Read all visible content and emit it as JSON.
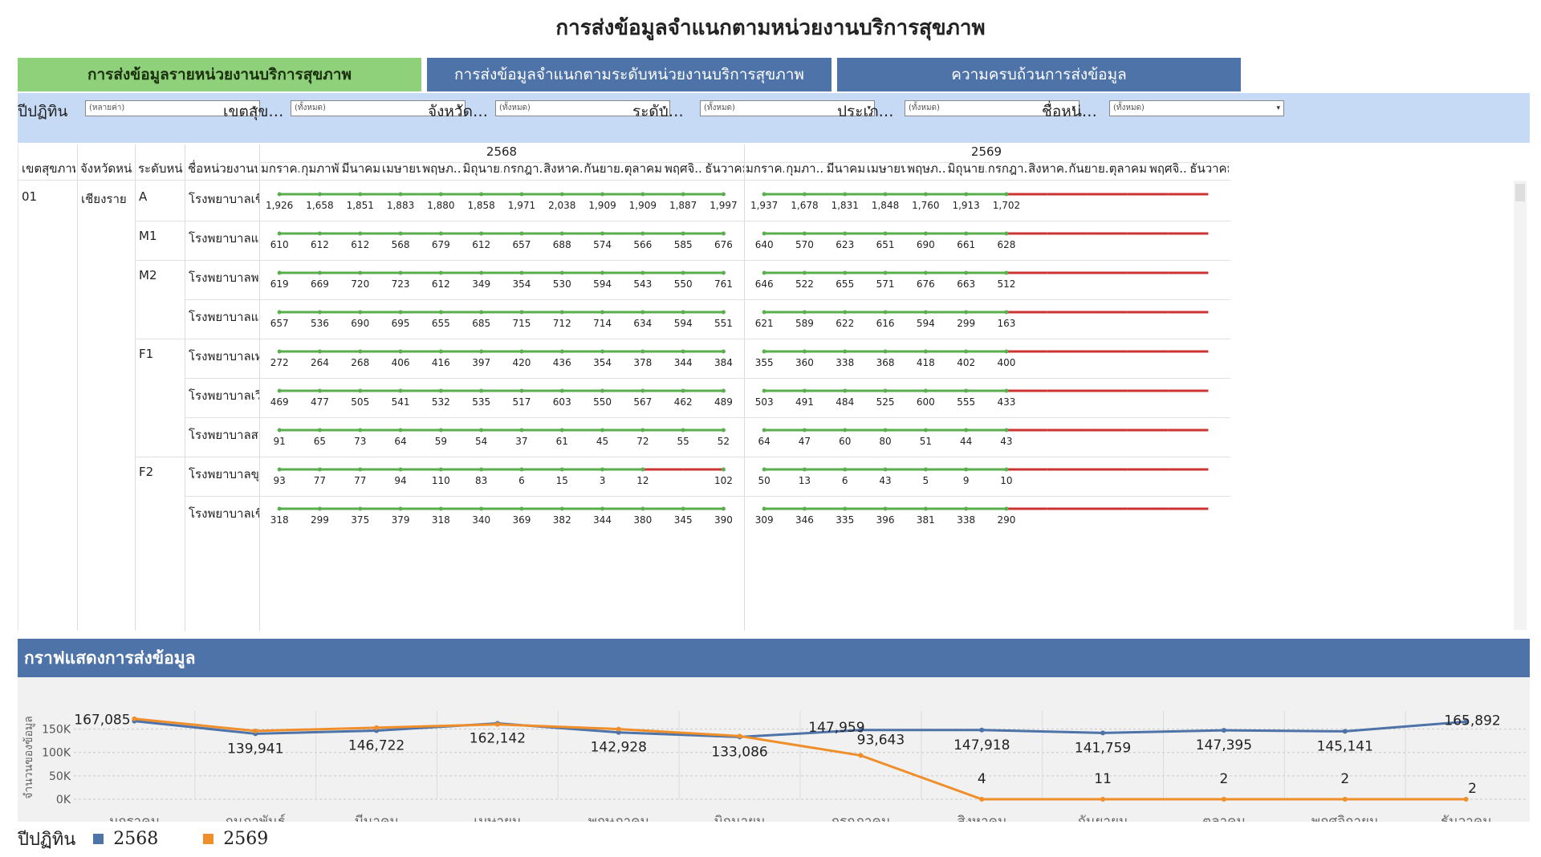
{
  "title": "การส่งข้อมูลจำแนกตามหน่วยงานบริการสุขภาพ",
  "tabs": [
    {
      "label": "การส่งข้อมูลรายหน่วยงานบริการสุขภาพ",
      "active": true
    },
    {
      "label": "การส่งข้อมูลจำแนกตามระดับหน่วยงานบริการสุขภาพ",
      "active": false
    },
    {
      "label": "ความครบถ้วนการส่งข้อมูล",
      "active": false
    }
  ],
  "filters": [
    {
      "label": "ปีปฏิทิน",
      "value": "(หลายค่า)"
    },
    {
      "label": "เขตสุข…",
      "value": "(ทั้งหมด)"
    },
    {
      "label": "จังหวัด…",
      "value": "(ทั้งหมด)"
    },
    {
      "label": "ระดับ…",
      "value": "(ทั้งหมด)"
    },
    {
      "label": "ประเภ…",
      "value": "(ทั้งหมด)"
    },
    {
      "label": "ชื่อหน่…",
      "value": "(ทั้งหมด)"
    }
  ],
  "table": {
    "row_headers": [
      "เขตสุขภาพ",
      "จังหวัดหน่..",
      "ระดับหน่..",
      "ชื่อหน่วยงานบ.."
    ],
    "years": [
      "2568",
      "2569"
    ],
    "months_2568": [
      "มกราค..",
      "กุมภาพั..",
      "มีนาคม",
      "เมษายน",
      "พฤษภ..",
      "มิถุนาย..",
      "กรกฎา..",
      "สิงหาค..",
      "กันยาย..",
      "ตุลาคม",
      "พฤศจิ..",
      "ธันวาคม"
    ],
    "months_2569": [
      "มกราค..",
      "กุมภา..",
      "มีนาคม",
      "เมษายน",
      "พฤษภ..",
      "มิถุนาย..",
      "กรกฎา..",
      "สิงหาค..",
      "กันยาย..",
      "ตุลาคม",
      "พฤศจิ..",
      "ธันวาคม"
    ],
    "region": "01",
    "province": "เชียงราย",
    "rows": [
      {
        "level": "A",
        "name": "โรงพยาบาลเชี..",
        "v2568": [
          "1,926",
          "1,658",
          "1,851",
          "1,883",
          "1,880",
          "1,858",
          "1,971",
          "2,038",
          "1,909",
          "1,909",
          "1,887",
          "1,997"
        ],
        "v2569": [
          "1,937",
          "1,678",
          "1,831",
          "1,848",
          "1,760",
          "1,913",
          "1,702"
        ]
      },
      {
        "level": "M1",
        "name": "โรงพยาบาลแ..",
        "v2568": [
          "610",
          "612",
          "612",
          "568",
          "679",
          "612",
          "657",
          "688",
          "574",
          "566",
          "585",
          "676"
        ],
        "v2569": [
          "640",
          "570",
          "623",
          "651",
          "690",
          "661",
          "628"
        ]
      },
      {
        "level": "M2",
        "name": "โรงพยาบาลพ..",
        "v2568": [
          "619",
          "669",
          "720",
          "723",
          "612",
          "349",
          "354",
          "530",
          "594",
          "543",
          "550",
          "761"
        ],
        "v2569": [
          "646",
          "522",
          "655",
          "571",
          "676",
          "663",
          "512"
        ]
      },
      {
        "level": "",
        "name": "โรงพยาบาลแ..",
        "v2568": [
          "657",
          "536",
          "690",
          "695",
          "655",
          "685",
          "715",
          "712",
          "714",
          "634",
          "594",
          "551"
        ],
        "v2569": [
          "621",
          "589",
          "622",
          "616",
          "594",
          "299",
          "163"
        ]
      },
      {
        "level": "F1",
        "name": "โรงพยาบาลเท..",
        "v2568": [
          "272",
          "264",
          "268",
          "406",
          "416",
          "397",
          "420",
          "436",
          "354",
          "378",
          "344",
          "384"
        ],
        "v2569": [
          "355",
          "360",
          "338",
          "368",
          "418",
          "402",
          "400"
        ]
      },
      {
        "level": "",
        "name": "โรงพยาบาลเวี..",
        "v2568": [
          "469",
          "477",
          "505",
          "541",
          "532",
          "535",
          "517",
          "603",
          "550",
          "567",
          "462",
          "489"
        ],
        "v2569": [
          "503",
          "491",
          "484",
          "525",
          "600",
          "555",
          "433"
        ]
      },
      {
        "level": "",
        "name": "โรงพยาบาลส..",
        "v2568": [
          "91",
          "65",
          "73",
          "64",
          "59",
          "54",
          "37",
          "61",
          "45",
          "72",
          "55",
          "52"
        ],
        "v2569": [
          "64",
          "47",
          "60",
          "80",
          "51",
          "44",
          "43"
        ]
      },
      {
        "level": "F2",
        "name": "โรงพยาบาลขุ..",
        "v2568": [
          "93",
          "77",
          "77",
          "94",
          "110",
          "83",
          "6",
          "15",
          "3",
          "12",
          "",
          "102"
        ],
        "v2569": [
          "50",
          "13",
          "6",
          "43",
          "5",
          "9",
          "10"
        ]
      },
      {
        "level": "",
        "name": "โรงพยาบาลเชี..",
        "v2568": [
          "318",
          "299",
          "375",
          "379",
          "318",
          "340",
          "369",
          "382",
          "344",
          "380",
          "345",
          "390"
        ],
        "v2569": [
          "309",
          "346",
          "335",
          "396",
          "381",
          "338",
          "290"
        ]
      }
    ]
  },
  "colors": {
    "green": "#5aae4e",
    "red": "#cc3333",
    "blue_series": "#4e73a8",
    "orange_series": "#ef8f2c",
    "tab_active": "#8fd07a",
    "tab_inactive": "#4e73a8"
  },
  "chart_header": "กราฟแสดงการส่งข้อมูล",
  "chart_data": {
    "type": "line",
    "ylabel": "จำนวนของข้อมูล",
    "yticks": [
      "150K",
      "100K",
      "50K",
      "0K"
    ],
    "ylim": [
      0,
      175000
    ],
    "categories": [
      "มกราคม",
      "กุมภาพันธ์",
      "มีนาคม",
      "เมษายน",
      "พฤษภาคม",
      "มิถุนายน",
      "กรกฎาคม",
      "สิงหาคม",
      "กันยายน",
      "ตุลาคม",
      "พฤศจิกายน",
      "ธันวาคม"
    ],
    "series": [
      {
        "name": "2568",
        "color": "#4e73a8",
        "values": [
          167085,
          139941,
          146722,
          162142,
          142928,
          133086,
          147959,
          147918,
          141759,
          147395,
          145141,
          165892
        ],
        "labels": [
          "167,085",
          "139,941",
          "146,722",
          "162,142",
          "142,928",
          "133,086",
          "147,959",
          "147,918",
          "141,759",
          "147,395",
          "145,141",
          "165,892"
        ]
      },
      {
        "name": "2569",
        "color": "#ef8f2c",
        "values": [
          172000,
          146000,
          153000,
          160000,
          150000,
          135000,
          93643,
          4,
          11,
          2,
          2,
          2
        ],
        "labels": [
          "",
          "",
          "",
          "",
          "",
          "",
          "93,643",
          "4",
          "11",
          "2",
          "2",
          "2"
        ]
      }
    ],
    "legend_title": "ปีปฏิทิน"
  }
}
